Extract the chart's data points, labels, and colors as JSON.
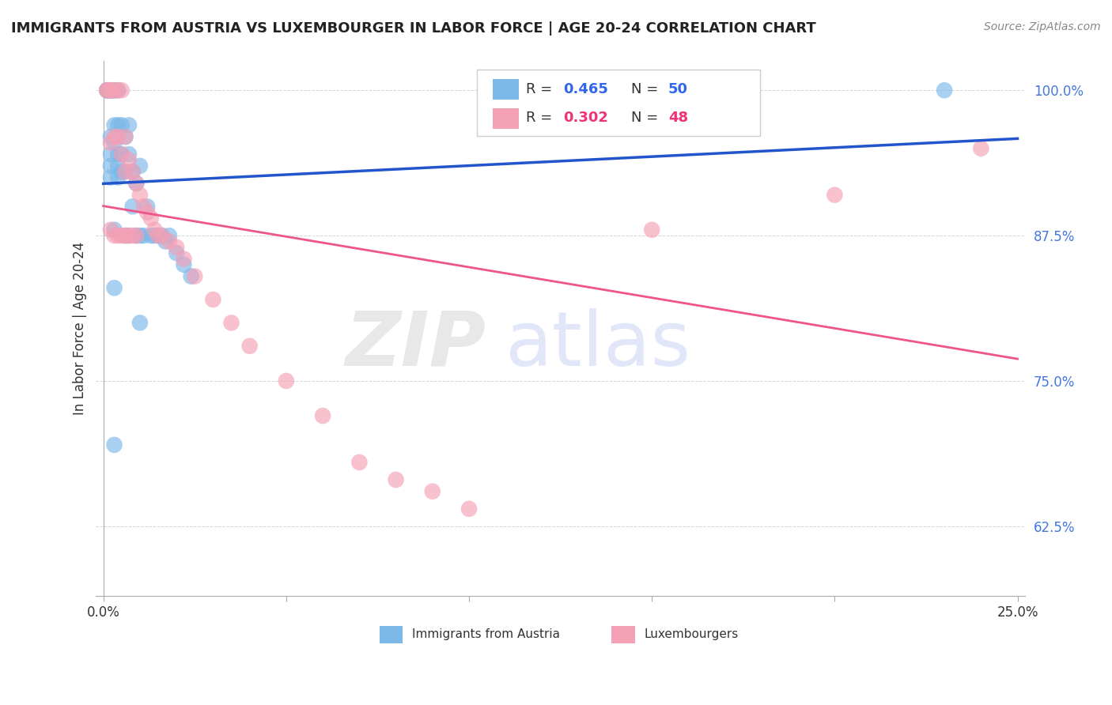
{
  "title": "IMMIGRANTS FROM AUSTRIA VS LUXEMBOURGER IN LABOR FORCE | AGE 20-24 CORRELATION CHART",
  "source": "Source: ZipAtlas.com",
  "ylabel": "In Labor Force | Age 20-24",
  "blue_color": "#7BB8E8",
  "pink_color": "#F4A0B5",
  "blue_line_color": "#2255CC",
  "pink_line_color": "#EE5588",
  "xlim": [
    -0.002,
    0.252
  ],
  "ylim": [
    0.565,
    1.025
  ],
  "yticks": [
    0.625,
    0.75,
    0.875,
    1.0
  ],
  "ytick_labels": [
    "62.5%",
    "75.0%",
    "87.5%",
    "100.0%"
  ],
  "xticks": [
    0.0,
    0.05,
    0.1,
    0.15,
    0.2,
    0.25
  ],
  "xtick_labels": [
    "0.0%",
    "",
    "",
    "",
    "",
    "25.0%"
  ],
  "austria_x": [
    0.001,
    0.001,
    0.001,
    0.002,
    0.002,
    0.002,
    0.002,
    0.002,
    0.002,
    0.002,
    0.003,
    0.003,
    0.003,
    0.003,
    0.003,
    0.003,
    0.004,
    0.004,
    0.004,
    0.004,
    0.004,
    0.005,
    0.005,
    0.005,
    0.006,
    0.006,
    0.006,
    0.007,
    0.007,
    0.007,
    0.008,
    0.008,
    0.009,
    0.009,
    0.01,
    0.01,
    0.011,
    0.012,
    0.013,
    0.014,
    0.015,
    0.016,
    0.017,
    0.018,
    0.02,
    0.022,
    0.024,
    0.01,
    0.003,
    0.23
  ],
  "austria_y": [
    1.0,
    1.0,
    1.0,
    1.0,
    1.0,
    1.0,
    0.96,
    0.945,
    0.935,
    0.925,
    1.0,
    1.0,
    0.97,
    0.955,
    0.88,
    0.83,
    1.0,
    0.97,
    0.945,
    0.935,
    0.925,
    0.97,
    0.945,
    0.93,
    0.96,
    0.93,
    0.875,
    0.97,
    0.945,
    0.875,
    0.93,
    0.9,
    0.92,
    0.875,
    0.935,
    0.875,
    0.875,
    0.9,
    0.875,
    0.875,
    0.875,
    0.875,
    0.87,
    0.875,
    0.86,
    0.85,
    0.84,
    0.8,
    0.695,
    1.0
  ],
  "luxembourger_x": [
    0.001,
    0.001,
    0.002,
    0.002,
    0.002,
    0.002,
    0.003,
    0.003,
    0.003,
    0.004,
    0.004,
    0.004,
    0.005,
    0.005,
    0.005,
    0.006,
    0.006,
    0.006,
    0.007,
    0.007,
    0.008,
    0.008,
    0.009,
    0.009,
    0.01,
    0.011,
    0.012,
    0.013,
    0.014,
    0.015,
    0.016,
    0.018,
    0.02,
    0.022,
    0.025,
    0.03,
    0.035,
    0.04,
    0.05,
    0.06,
    0.07,
    0.08,
    0.09,
    0.1,
    0.11,
    0.15,
    0.2,
    0.24
  ],
  "luxembourger_y": [
    1.0,
    1.0,
    1.0,
    1.0,
    0.955,
    0.88,
    1.0,
    0.96,
    0.875,
    1.0,
    0.96,
    0.875,
    1.0,
    0.945,
    0.875,
    0.96,
    0.93,
    0.875,
    0.94,
    0.875,
    0.93,
    0.875,
    0.92,
    0.875,
    0.91,
    0.9,
    0.895,
    0.89,
    0.88,
    0.875,
    0.875,
    0.87,
    0.865,
    0.855,
    0.84,
    0.82,
    0.8,
    0.78,
    0.75,
    0.72,
    0.68,
    0.665,
    0.655,
    0.64,
    1.0,
    0.88,
    0.91,
    0.95
  ]
}
